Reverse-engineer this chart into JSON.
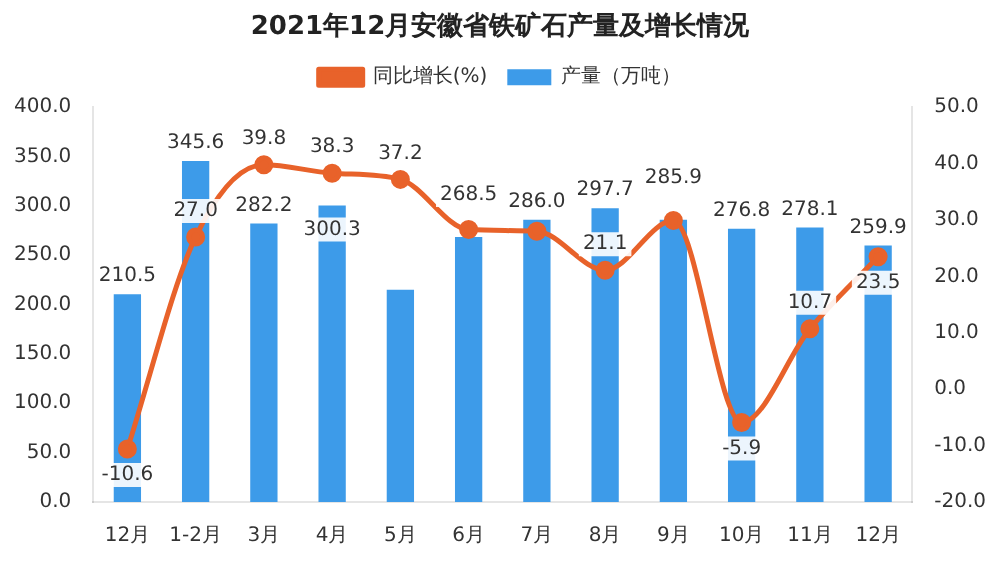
{
  "chart_data": {
    "type": "bar",
    "title": "2021年12月安徽省铁矿石产量及增长情况",
    "categories": [
      "12月",
      "1-2月",
      "3月",
      "4月",
      "5月",
      "6月",
      "7月",
      "8月",
      "9月",
      "10月",
      "11月",
      "12月"
    ],
    "series": [
      {
        "name": "产量（万吨）",
        "color": "#3d9be9",
        "values": [
          210.5,
          345.6,
          282.2,
          300.3,
          215,
          268.5,
          286.0,
          297.7,
          285.9,
          276.8,
          278.1,
          259.9
        ],
        "value_labels": [
          "210.5",
          "345.6",
          "282.2",
          "300.3",
          null,
          "268.5",
          "286.0",
          "297.7",
          "285.9",
          "276.8",
          "278.1",
          "259.9"
        ]
      },
      {
        "name": "同比增长(%)",
        "type": "line",
        "axis": "y2",
        "color": "#e8622a",
        "values": [
          -10.6,
          27.0,
          39.8,
          38.3,
          37.2,
          28.3,
          28.0,
          21.1,
          29.9,
          -5.9,
          10.7,
          23.5
        ],
        "value_labels": [
          "-10.6",
          "27.0",
          "39.8",
          "38.3",
          "37.2",
          null,
          null,
          "21.1",
          null,
          "-5.9",
          "10.7",
          "23.5"
        ]
      }
    ],
    "ylim": [
      0,
      400
    ],
    "yticks": [
      {
        "value": 0,
        "label": "0.0"
      },
      {
        "value": 50,
        "label": "50.0"
      },
      {
        "value": 100,
        "label": "100.0"
      },
      {
        "value": 150,
        "label": "150.0"
      },
      {
        "value": 200,
        "label": "200.0"
      },
      {
        "value": 250,
        "label": "250.0"
      },
      {
        "value": 300,
        "label": "300.0"
      },
      {
        "value": 350,
        "label": "350.0"
      },
      {
        "value": 400,
        "label": "400.0"
      }
    ],
    "y2lim": [
      -20,
      50
    ],
    "y2ticks": [
      {
        "value": -20,
        "label": "-20.0"
      },
      {
        "value": -10,
        "label": "-10.0"
      },
      {
        "value": 0,
        "label": "0.0"
      },
      {
        "value": 10,
        "label": "10.0"
      },
      {
        "value": 20,
        "label": "20.0"
      },
      {
        "value": 30,
        "label": "30.0"
      },
      {
        "value": 40,
        "label": "40.0"
      },
      {
        "value": 50,
        "label": "50.0"
      }
    ],
    "legend": "top",
    "grid": false,
    "marker": "circle"
  }
}
